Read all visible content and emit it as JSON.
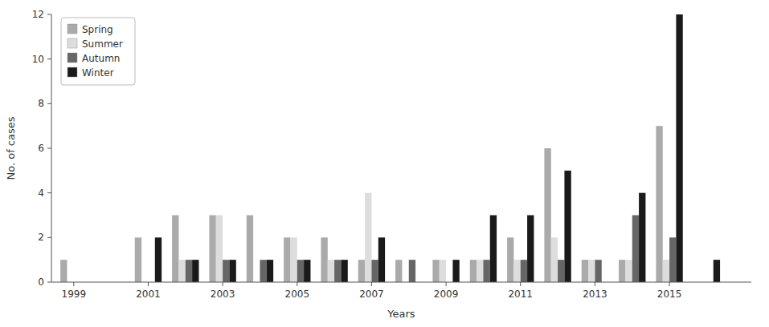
{
  "chart_data": {
    "type": "bar",
    "xlabel": "Years",
    "ylabel": "No. of cases",
    "x": [
      1999,
      2000,
      2001,
      2002,
      2003,
      2004,
      2005,
      2006,
      2007,
      2008,
      2009,
      2010,
      2011,
      2012,
      2013,
      2014,
      2015,
      2016
    ],
    "series": [
      {
        "name": "Spring",
        "color": "#aaaaaa",
        "values": [
          1,
          0,
          2,
          3,
          3,
          3,
          2,
          2,
          1,
          1,
          1,
          1,
          2,
          6,
          1,
          1,
          7,
          0
        ]
      },
      {
        "name": "Summer",
        "color": "#dddddd",
        "values": [
          0,
          0,
          0,
          1,
          3,
          0,
          2,
          1,
          4,
          0,
          1,
          1,
          1,
          2,
          1,
          1,
          1,
          0
        ]
      },
      {
        "name": "Autumn",
        "color": "#666666",
        "values": [
          0,
          0,
          0,
          1,
          1,
          1,
          1,
          1,
          1,
          1,
          0,
          1,
          1,
          1,
          1,
          3,
          2,
          0
        ]
      },
      {
        "name": "Winter",
        "color": "#1a1a1a",
        "values": [
          0,
          0,
          2,
          1,
          1,
          1,
          1,
          1,
          2,
          0,
          1,
          3,
          3,
          5,
          0,
          4,
          12,
          1
        ]
      }
    ],
    "xlim": [
      1998.4,
      2017.2
    ],
    "xticks": [
      1999,
      2001,
      2003,
      2005,
      2007,
      2009,
      2011,
      2013,
      2015
    ],
    "ylim": [
      0,
      12
    ],
    "yticks": [
      0,
      2,
      4,
      6,
      8,
      10,
      12
    ],
    "grid": false,
    "legend": "upper-left"
  }
}
